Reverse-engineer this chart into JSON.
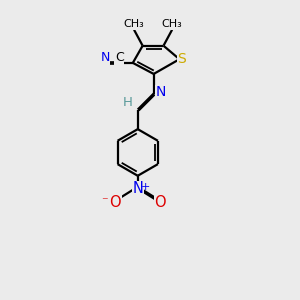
{
  "bg_color": "#ebebeb",
  "atoms": {
    "S": {
      "color": "#ccaa00"
    },
    "N": {
      "color": "#0000ee"
    },
    "O": {
      "color": "#dd0000"
    },
    "C": {
      "color": "#000000"
    },
    "H": {
      "color": "#5a9a9a"
    }
  },
  "lw": 1.6,
  "doff": 0.055,
  "xlim": [
    0,
    10
  ],
  "ylim": [
    0,
    12
  ],
  "figsize": [
    3.0,
    3.0
  ],
  "dpi": 100
}
